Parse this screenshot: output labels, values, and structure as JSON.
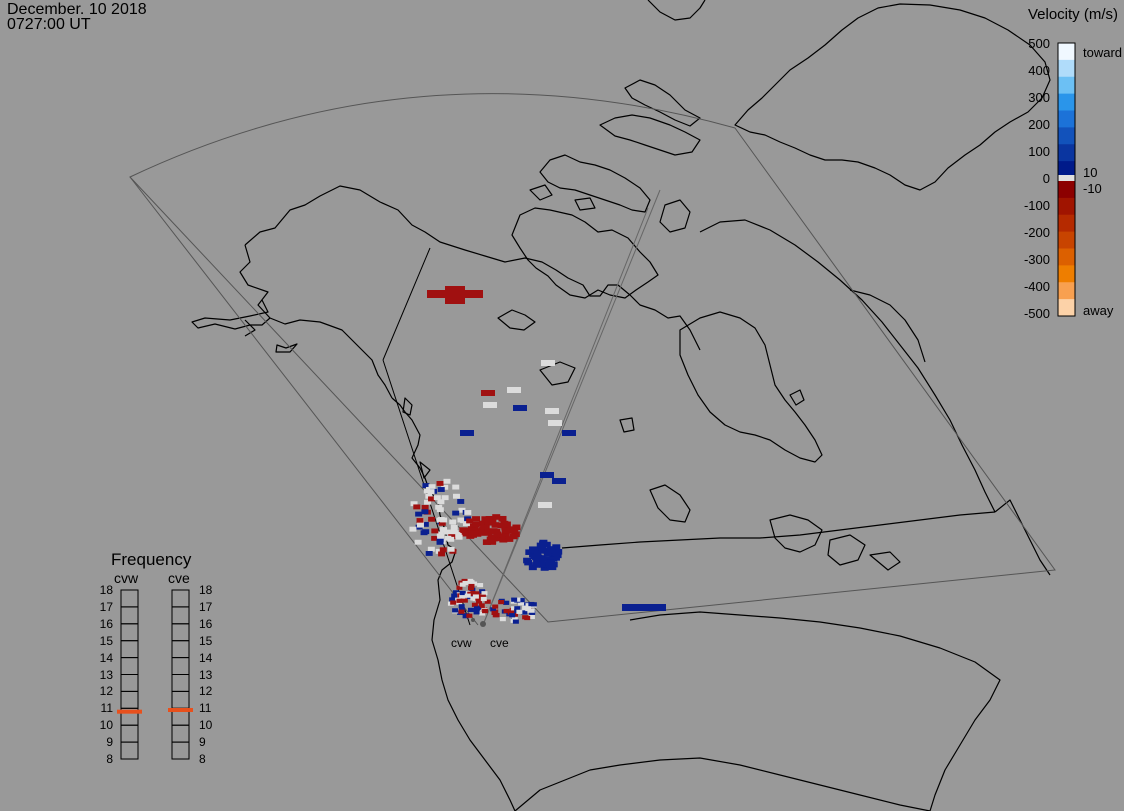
{
  "header": {
    "date": "December. 10 2018",
    "time": "0727:00 UT"
  },
  "velocity_scale": {
    "title": "Velocity (m/s)",
    "ticks": [
      "500",
      "400",
      "300",
      "200",
      "100",
      "0",
      "-100",
      "-200",
      "-300",
      "-400",
      "-500"
    ],
    "inner_pos": "10",
    "inner_neg": "-10",
    "toward_label": "toward",
    "away_label": "away",
    "colors": {
      "toward": [
        "#f0f8ff",
        "#b0dcfa",
        "#6cc0f4",
        "#2a95ea",
        "#1c72d8",
        "#1252bb",
        "#0a35a0",
        "#001a8a"
      ],
      "away": [
        "#8c0000",
        "#a01400",
        "#b52a00",
        "#c84400",
        "#dc6000",
        "#ee7e00",
        "#f8a050",
        "#fcd2a8"
      ],
      "low": "#e0e0e0"
    }
  },
  "frequency": {
    "title": "Frequency",
    "channels": [
      {
        "name": "cvw",
        "freq": 10.8
      },
      {
        "name": "cve",
        "freq": 10.9
      }
    ],
    "ticks": [
      "18",
      "17",
      "16",
      "15",
      "14",
      "13",
      "12",
      "11",
      "10",
      "9",
      "8"
    ],
    "indicator_color": "#e8501c"
  },
  "radars": [
    {
      "name": "cvw"
    },
    {
      "name": "cve"
    }
  ],
  "colors": {
    "background": "#999999",
    "coast": "#000000",
    "fov": "#555555",
    "radar_site": "#555555"
  }
}
